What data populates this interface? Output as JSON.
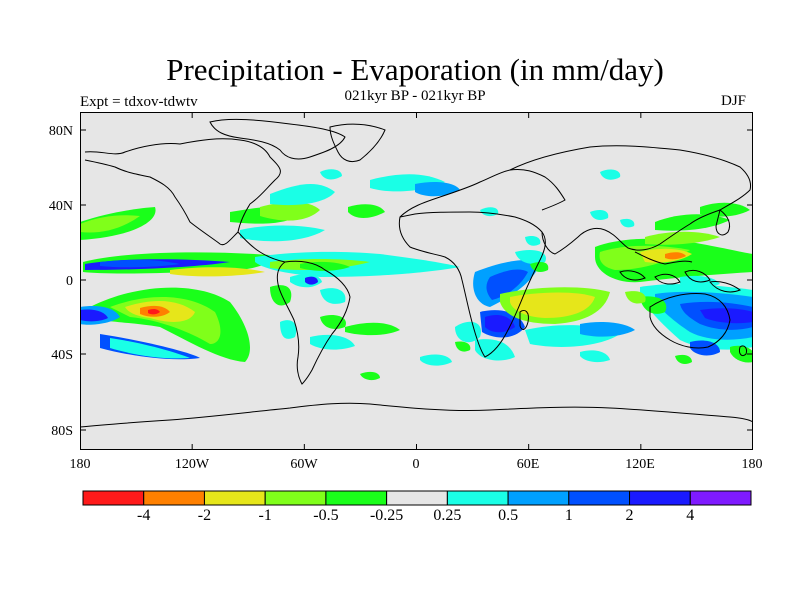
{
  "title": "Precipitation - Evaporation (in mm/day)",
  "subtitle": "021kyr BP - 021kyr BP",
  "experiment_label": "Expt = tdxov-tdwtv",
  "season_label": "DJF",
  "map": {
    "background_color": "#e6e6e6",
    "lat_ticks": [
      "80N",
      "40N",
      "0",
      "40S",
      "80S"
    ],
    "lon_ticks": [
      "180",
      "120W",
      "60W",
      "0",
      "60E",
      "120E",
      "180"
    ]
  },
  "colorbar": {
    "colors": [
      "#ff1a1a",
      "#ff8000",
      "#e6e61a",
      "#80ff1a",
      "#1aff1a",
      "#e6e6e6",
      "#1affe6",
      "#00a0ff",
      "#0050ff",
      "#1a1aff",
      "#7f1aff"
    ],
    "labels": [
      "-4",
      "-2",
      "-1",
      "-0.5",
      "-0.25",
      "0.25",
      "0.5",
      "1",
      "2",
      "4"
    ]
  }
}
